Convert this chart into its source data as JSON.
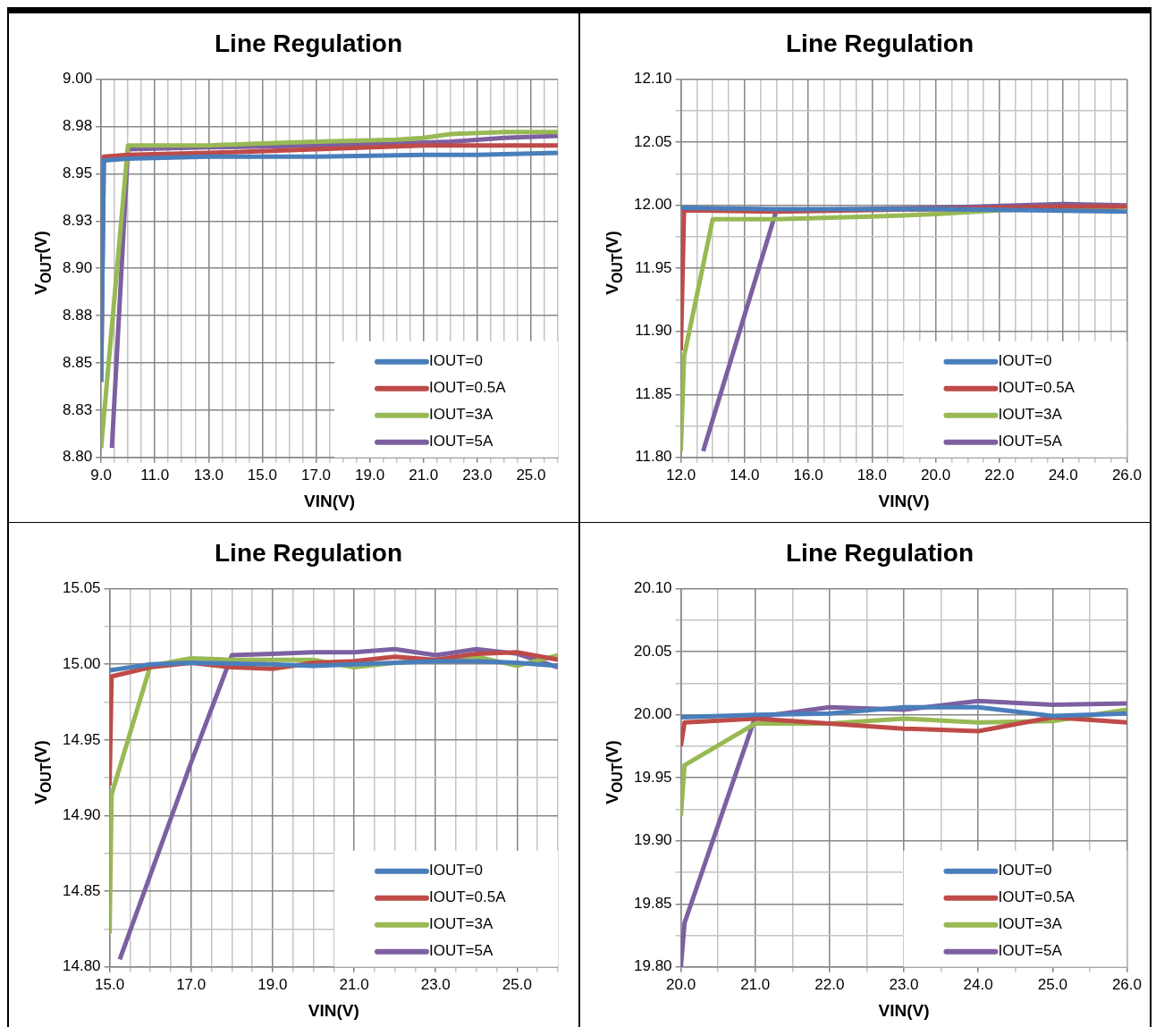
{
  "chart_data": [
    {
      "type": "line",
      "title": "Line Regulation",
      "xlabel": "VIN(V)",
      "ylabel": "V$_{OUT}$(V)",
      "grid": true,
      "legend": "bottom right",
      "marker": "none",
      "line_style": "solid",
      "xlim": [
        9,
        26
      ],
      "ylim": [
        8.8,
        9
      ],
      "xticks": [
        {
          "value": 9,
          "label": "9.0"
        },
        {
          "value": 9.5,
          "label": null
        },
        {
          "value": 10,
          "label": null
        },
        {
          "value": 10.5,
          "label": null
        },
        {
          "value": 11,
          "label": "11.0"
        },
        {
          "value": 11.5,
          "label": null
        },
        {
          "value": 12,
          "label": null
        },
        {
          "value": 12.5,
          "label": null
        },
        {
          "value": 13,
          "label": "13.0"
        },
        {
          "value": 13.5,
          "label": null
        },
        {
          "value": 14,
          "label": null
        },
        {
          "value": 14.5,
          "label": null
        },
        {
          "value": 15,
          "label": "15.0"
        },
        {
          "value": 15.5,
          "label": null
        },
        {
          "value": 16,
          "label": null
        },
        {
          "value": 16.5,
          "label": null
        },
        {
          "value": 17,
          "label": "17.0"
        },
        {
          "value": 17.5,
          "label": null
        },
        {
          "value": 18,
          "label": null
        },
        {
          "value": 18.5,
          "label": null
        },
        {
          "value": 19,
          "label": "19.0"
        },
        {
          "value": 19.5,
          "label": null
        },
        {
          "value": 20,
          "label": null
        },
        {
          "value": 20.5,
          "label": null
        },
        {
          "value": 21,
          "label": "21.0"
        },
        {
          "value": 21.5,
          "label": null
        },
        {
          "value": 22,
          "label": null
        },
        {
          "value": 22.5,
          "label": null
        },
        {
          "value": 23,
          "label": "23.0"
        },
        {
          "value": 23.5,
          "label": null
        },
        {
          "value": 24,
          "label": null
        },
        {
          "value": 24.5,
          "label": null
        },
        {
          "value": 25,
          "label": "25.0"
        },
        {
          "value": 25.5,
          "label": null
        },
        {
          "value": 26,
          "label": null
        }
      ],
      "yticks": [
        {
          "value": 8.8,
          "label": "8.80"
        },
        {
          "value": 8.825,
          "label": "8.83"
        },
        {
          "value": 8.85,
          "label": "8.85"
        },
        {
          "value": 8.875,
          "label": "8.88"
        },
        {
          "value": 8.9,
          "label": "8.90"
        },
        {
          "value": 8.925,
          "label": "8.93"
        },
        {
          "value": 8.95,
          "label": "8.95"
        },
        {
          "value": 8.975,
          "label": "8.98"
        },
        {
          "value": 9,
          "label": "9.00"
        }
      ],
      "series": [
        {
          "name": "IOUT=0",
          "color": "#4a7ebb",
          "x": [
            9,
            9.1,
            10,
            13,
            17,
            21,
            23,
            26
          ],
          "values": [
            8.84,
            8.957,
            8.958,
            8.959,
            8.959,
            8.96,
            8.96,
            8.961
          ]
        },
        {
          "name": "IOUT=0.5A",
          "color": "#be4b48",
          "x": [
            9,
            9.1,
            10,
            13,
            17,
            21,
            26
          ],
          "values": [
            8.84,
            8.959,
            8.96,
            8.961,
            8.963,
            8.965,
            8.965
          ]
        },
        {
          "name": "IOUT=3A",
          "color": "#98b954",
          "x": [
            9,
            10,
            13,
            15,
            17,
            20,
            21,
            22,
            24,
            26
          ],
          "values": [
            8.805,
            8.965,
            8.965,
            8.966,
            8.967,
            8.968,
            8.969,
            8.971,
            8.972,
            8.972
          ]
        },
        {
          "name": "IOUT=5A",
          "color": "#7d60a0",
          "x": [
            9.4,
            10,
            13,
            17,
            20,
            22,
            24,
            26
          ],
          "values": [
            8.805,
            8.963,
            8.964,
            8.965,
            8.966,
            8.967,
            8.969,
            8.97
          ]
        }
      ]
    },
    {
      "type": "line",
      "title": "Line Regulation",
      "xlabel": "VIN(V)",
      "ylabel": "V$_{OUT}$(V)",
      "grid": true,
      "legend": "bottom right",
      "marker": "none",
      "line_style": "solid",
      "xlim": [
        12,
        26
      ],
      "ylim": [
        11.8,
        12.1
      ],
      "xticks": [
        {
          "value": 12,
          "label": "12.0"
        },
        {
          "value": 12.5,
          "label": null
        },
        {
          "value": 13,
          "label": null
        },
        {
          "value": 13.5,
          "label": null
        },
        {
          "value": 14,
          "label": "14.0"
        },
        {
          "value": 14.5,
          "label": null
        },
        {
          "value": 15,
          "label": null
        },
        {
          "value": 15.5,
          "label": null
        },
        {
          "value": 16,
          "label": "16.0"
        },
        {
          "value": 16.5,
          "label": null
        },
        {
          "value": 17,
          "label": null
        },
        {
          "value": 17.5,
          "label": null
        },
        {
          "value": 18,
          "label": "18.0"
        },
        {
          "value": 18.5,
          "label": null
        },
        {
          "value": 19,
          "label": null
        },
        {
          "value": 19.5,
          "label": null
        },
        {
          "value": 20,
          "label": "20.0"
        },
        {
          "value": 20.5,
          "label": null
        },
        {
          "value": 21,
          "label": null
        },
        {
          "value": 21.5,
          "label": null
        },
        {
          "value": 22,
          "label": "22.0"
        },
        {
          "value": 22.5,
          "label": null
        },
        {
          "value": 23,
          "label": null
        },
        {
          "value": 23.5,
          "label": null
        },
        {
          "value": 24,
          "label": "24.0"
        },
        {
          "value": 24.5,
          "label": null
        },
        {
          "value": 25,
          "label": null
        },
        {
          "value": 25.5,
          "label": null
        },
        {
          "value": 26,
          "label": "26.0"
        }
      ],
      "yticks": [
        {
          "value": 11.8,
          "label": "11.80"
        },
        {
          "value": 11.825,
          "label": null
        },
        {
          "value": 11.85,
          "label": "11.85"
        },
        {
          "value": 11.875,
          "label": null
        },
        {
          "value": 11.9,
          "label": "11.90"
        },
        {
          "value": 11.925,
          "label": null
        },
        {
          "value": 11.95,
          "label": "11.95"
        },
        {
          "value": 11.975,
          "label": null
        },
        {
          "value": 12,
          "label": "12.00"
        },
        {
          "value": 12.025,
          "label": null
        },
        {
          "value": 12.05,
          "label": "12.05"
        },
        {
          "value": 12.075,
          "label": null
        },
        {
          "value": 12.1,
          "label": "12.10"
        }
      ],
      "series": [
        {
          "name": "IOUT=0",
          "color": "#4a7ebb",
          "x": [
            12,
            12.1,
            15,
            20,
            23,
            26
          ],
          "values": [
            11.998,
            11.998,
            11.997,
            11.997,
            11.996,
            11.995
          ]
        },
        {
          "name": "IOUT=0.5A",
          "color": "#be4b48",
          "x": [
            12,
            12.1,
            15,
            20,
            24,
            26
          ],
          "values": [
            11.885,
            11.996,
            11.995,
            11.997,
            11.999,
            11.999
          ]
        },
        {
          "name": "IOUT=3A",
          "color": "#98b954",
          "x": [
            12,
            12.1,
            13,
            15,
            18,
            20,
            22,
            26
          ],
          "values": [
            11.805,
            11.88,
            11.989,
            11.989,
            11.991,
            11.993,
            11.996,
            11.999
          ]
        },
        {
          "name": "IOUT=5A",
          "color": "#7d60a0",
          "x": [
            12.7,
            15,
            20,
            24,
            26
          ],
          "values": [
            11.805,
            11.996,
            11.998,
            12.001,
            12.0
          ]
        }
      ]
    },
    {
      "type": "line",
      "title": "Line Regulation",
      "xlabel": "VIN(V)",
      "ylabel": "V$_{OUT}$(V)",
      "grid": true,
      "legend": "bottom right",
      "marker": "none",
      "line_style": "solid",
      "xlim": [
        15,
        26
      ],
      "ylim": [
        14.8,
        15.05
      ],
      "xticks": [
        {
          "value": 15,
          "label": "15.0"
        },
        {
          "value": 15.5,
          "label": null
        },
        {
          "value": 16,
          "label": null
        },
        {
          "value": 16.5,
          "label": null
        },
        {
          "value": 17,
          "label": "17.0"
        },
        {
          "value": 17.5,
          "label": null
        },
        {
          "value": 18,
          "label": null
        },
        {
          "value": 18.5,
          "label": null
        },
        {
          "value": 19,
          "label": "19.0"
        },
        {
          "value": 19.5,
          "label": null
        },
        {
          "value": 20,
          "label": null
        },
        {
          "value": 20.5,
          "label": null
        },
        {
          "value": 21,
          "label": "21.0"
        },
        {
          "value": 21.5,
          "label": null
        },
        {
          "value": 22,
          "label": null
        },
        {
          "value": 22.5,
          "label": null
        },
        {
          "value": 23,
          "label": "23.0"
        },
        {
          "value": 23.5,
          "label": null
        },
        {
          "value": 24,
          "label": null
        },
        {
          "value": 24.5,
          "label": null
        },
        {
          "value": 25,
          "label": "25.0"
        },
        {
          "value": 25.5,
          "label": null
        },
        {
          "value": 26,
          "label": null
        }
      ],
      "yticks": [
        {
          "value": 14.8,
          "label": "14.80"
        },
        {
          "value": 14.825,
          "label": null
        },
        {
          "value": 14.85,
          "label": "14.85"
        },
        {
          "value": 14.875,
          "label": null
        },
        {
          "value": 14.9,
          "label": "14.90"
        },
        {
          "value": 14.925,
          "label": null
        },
        {
          "value": 14.95,
          "label": "14.95"
        },
        {
          "value": 14.975,
          "label": null
        },
        {
          "value": 15,
          "label": "15.00"
        },
        {
          "value": 15.025,
          "label": null
        },
        {
          "value": 15.05,
          "label": "15.05"
        }
      ],
      "series": [
        {
          "name": "IOUT=0",
          "color": "#4a7ebb",
          "x": [
            15,
            16,
            17,
            19,
            20,
            21,
            22,
            23,
            24,
            25,
            26
          ],
          "values": [
            14.996,
            15.0,
            15.001,
            15.0,
            14.999,
            15.0,
            15.001,
            15.002,
            15.002,
            15.001,
            14.999
          ]
        },
        {
          "name": "IOUT=0.5A",
          "color": "#be4b48",
          "x": [
            15,
            15.05,
            16,
            17,
            18,
            19,
            20,
            21,
            22,
            23,
            24,
            25,
            26
          ],
          "values": [
            14.92,
            14.992,
            14.998,
            15.001,
            14.998,
            14.997,
            15.001,
            15.002,
            15.005,
            15.003,
            15.007,
            15.008,
            15.003
          ]
        },
        {
          "name": "IOUT=3A",
          "color": "#98b954",
          "x": [
            15,
            15.05,
            16,
            17,
            18,
            19,
            20,
            21,
            22,
            23,
            24,
            25,
            26
          ],
          "values": [
            14.822,
            14.914,
            14.999,
            15.004,
            15.003,
            15.003,
            15.003,
            14.998,
            15.001,
            15.003,
            15.005,
            14.999,
            15.006
          ]
        },
        {
          "name": "IOUT=5A",
          "color": "#7d60a0",
          "x": [
            15.25,
            17,
            18,
            19,
            20,
            21,
            22,
            23,
            24,
            25,
            26
          ],
          "values": [
            14.805,
            14.935,
            15.006,
            15.007,
            15.008,
            15.008,
            15.01,
            15.006,
            15.01,
            15.007,
            14.998
          ]
        }
      ]
    },
    {
      "type": "line",
      "title": "Line Regulation",
      "xlabel": "VIN(V)",
      "ylabel": "V$_{OUT}$(V)",
      "grid": true,
      "legend": "bottom right",
      "marker": "none",
      "line_style": "solid",
      "xlim": [
        20,
        26
      ],
      "ylim": [
        19.8,
        20.1
      ],
      "xticks": [
        {
          "value": 20,
          "label": "20.0"
        },
        {
          "value": 20.5,
          "label": null
        },
        {
          "value": 21,
          "label": "21.0"
        },
        {
          "value": 21.5,
          "label": null
        },
        {
          "value": 22,
          "label": "22.0"
        },
        {
          "value": 22.5,
          "label": null
        },
        {
          "value": 23,
          "label": "23.0"
        },
        {
          "value": 23.5,
          "label": null
        },
        {
          "value": 24,
          "label": "24.0"
        },
        {
          "value": 24.5,
          "label": null
        },
        {
          "value": 25,
          "label": "25.0"
        },
        {
          "value": 25.5,
          "label": null
        },
        {
          "value": 26,
          "label": "26.0"
        }
      ],
      "yticks": [
        {
          "value": 19.8,
          "label": "19.80"
        },
        {
          "value": 19.825,
          "label": null
        },
        {
          "value": 19.85,
          "label": "19.85"
        },
        {
          "value": 19.875,
          "label": null
        },
        {
          "value": 19.9,
          "label": "19.90"
        },
        {
          "value": 19.925,
          "label": null
        },
        {
          "value": 19.95,
          "label": "19.95"
        },
        {
          "value": 19.975,
          "label": null
        },
        {
          "value": 20,
          "label": "20.00"
        },
        {
          "value": 20.025,
          "label": null
        },
        {
          "value": 20.05,
          "label": "20.05"
        },
        {
          "value": 20.075,
          "label": null
        },
        {
          "value": 20.1,
          "label": "20.10"
        }
      ],
      "series": [
        {
          "name": "IOUT=0",
          "color": "#4a7ebb",
          "x": [
            20,
            21,
            22,
            23,
            24,
            25,
            26
          ],
          "values": [
            19.998,
            20.0,
            20.001,
            20.006,
            20.006,
            19.999,
            20.001
          ]
        },
        {
          "name": "IOUT=0.5A",
          "color": "#be4b48",
          "x": [
            20,
            20.05,
            21,
            22,
            23,
            24,
            25,
            26
          ],
          "values": [
            19.975,
            19.994,
            19.997,
            19.993,
            19.989,
            19.987,
            19.998,
            19.994
          ]
        },
        {
          "name": "IOUT=3A",
          "color": "#98b954",
          "x": [
            20,
            20.05,
            21,
            22,
            23,
            24,
            25,
            26
          ],
          "values": [
            19.92,
            19.96,
            19.993,
            19.993,
            19.997,
            19.994,
            19.995,
            20.004
          ]
        },
        {
          "name": "IOUT=5A",
          "color": "#7d60a0",
          "x": [
            20,
            20.05,
            21,
            22,
            23,
            24,
            25,
            26
          ],
          "values": [
            19.8,
            19.835,
            19.998,
            20.006,
            20.004,
            20.011,
            20.008,
            20.009
          ]
        }
      ]
    }
  ]
}
